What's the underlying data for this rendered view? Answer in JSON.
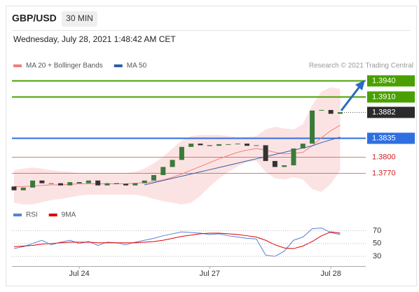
{
  "header": {
    "symbol": "GBP/USD",
    "interval": "30 MIN",
    "timestamp": "Wednesday, July 28, 2021 1:48:42 AM CET"
  },
  "chart_data": [
    {
      "type": "candlestick",
      "legend": [
        {
          "name": "MA 20 + Bollinger Bands",
          "color": "#f08080"
        },
        {
          "name": "MA 50",
          "color": "#2f5fa8"
        }
      ],
      "credit": "Research © 2021 Trading Central",
      "categories": [
        null,
        null,
        null,
        null,
        null,
        null,
        null,
        "Jul 24",
        null,
        null,
        null,
        null,
        null,
        null,
        null,
        null,
        null,
        null,
        null,
        null,
        null,
        "Jul 27",
        null,
        null,
        null,
        null,
        null,
        null,
        null,
        null,
        null,
        null,
        null,
        null,
        "Jul 28",
        null
      ],
      "open": [
        1.3745,
        1.3738,
        1.3743,
        1.3756,
        1.3751,
        1.3751,
        1.3747,
        1.3753,
        1.3751,
        1.3756,
        1.3747,
        1.3751,
        1.375,
        1.3747,
        1.3751,
        1.3756,
        1.3766,
        1.3781,
        1.3794,
        1.3818,
        1.3824,
        1.3821,
        1.382,
        1.3823,
        1.3823,
        1.3824,
        1.382,
        1.3821,
        1.3792,
        1.3781,
        1.3784,
        1.3815,
        1.3824,
        1.3885,
        1.3886,
        1.3879
      ],
      "close": [
        1.3738,
        1.3743,
        1.3756,
        1.3751,
        1.3751,
        1.3747,
        1.3753,
        1.3751,
        1.3756,
        1.3747,
        1.3751,
        1.375,
        1.3747,
        1.3751,
        1.3756,
        1.3766,
        1.3781,
        1.3794,
        1.3818,
        1.3824,
        1.3821,
        1.382,
        1.3823,
        1.3823,
        1.3824,
        1.382,
        1.3821,
        1.3792,
        1.3781,
        1.3784,
        1.3815,
        1.3824,
        1.3885,
        1.3886,
        1.3879,
        1.3882
      ],
      "up_color": "#3a7a3a",
      "down_color": "#333333",
      "ma20": [
        1.3745,
        1.3745,
        1.3746,
        1.3747,
        1.3748,
        1.3748,
        1.3749,
        1.375,
        1.375,
        1.375,
        1.375,
        1.375,
        1.375,
        1.3751,
        1.3752,
        1.3754,
        1.3757,
        1.3762,
        1.3768,
        1.3775,
        1.3782,
        1.3789,
        1.3796,
        1.3802,
        1.3808,
        1.3812,
        1.3815,
        1.3812,
        1.3808,
        1.3805,
        1.3806,
        1.3808,
        1.382,
        1.3835,
        1.3848,
        1.3858
      ],
      "ma50": [
        null,
        null,
        null,
        null,
        null,
        null,
        null,
        null,
        null,
        null,
        null,
        null,
        null,
        null,
        1.3748,
        1.3752,
        1.3756,
        1.376,
        1.3764,
        1.3768,
        1.3772,
        1.3776,
        1.378,
        1.3784,
        1.3788,
        1.3792,
        1.3796,
        1.38,
        1.3804,
        1.3808,
        1.3812,
        1.3816,
        1.382,
        1.3826,
        1.3831,
        1.3836
      ],
      "bollinger_upper": [
        1.3775,
        1.3778,
        1.378,
        1.3778,
        1.3775,
        1.3773,
        1.3772,
        1.377,
        1.377,
        1.377,
        1.377,
        1.377,
        1.377,
        1.3772,
        1.3778,
        1.3788,
        1.38,
        1.3815,
        1.383,
        1.3838,
        1.384,
        1.384,
        1.384,
        1.3838,
        1.3836,
        1.3836,
        1.3838,
        1.385,
        1.3855,
        1.3852,
        1.385,
        1.386,
        1.3895,
        1.392,
        1.3928,
        1.3925
      ],
      "bollinger_lower": [
        1.3715,
        1.3712,
        1.3712,
        1.3716,
        1.372,
        1.3722,
        1.3725,
        1.3728,
        1.373,
        1.373,
        1.373,
        1.373,
        1.373,
        1.373,
        1.3727,
        1.3722,
        1.3718,
        1.3715,
        1.3712,
        1.3715,
        1.3728,
        1.3745,
        1.376,
        1.3772,
        1.3782,
        1.379,
        1.3792,
        1.3772,
        1.376,
        1.3758,
        1.3762,
        1.3758,
        1.374,
        1.3735,
        1.375,
        1.3775
      ],
      "ylim": [
        1.3708,
        1.3979
      ],
      "levels": [
        {
          "value": 1.394,
          "label": "1.3940",
          "color": "#4aa000",
          "style": "box",
          "line": "solid"
        },
        {
          "value": 1.391,
          "label": "1.3910",
          "color": "#4aa000",
          "style": "box",
          "line": "solid"
        },
        {
          "value": 1.3882,
          "label": "1.3882",
          "color": "#2b2b2b",
          "style": "box",
          "line": "dotted"
        },
        {
          "value": 1.3835,
          "label": "1.3835",
          "color": "#2f6fe0",
          "style": "box",
          "line": "solid"
        },
        {
          "value": 1.38,
          "label": "1.3800",
          "color": "#d02020",
          "style": "text",
          "line": "solid"
        },
        {
          "value": 1.377,
          "label": "1.3770",
          "color": "#d02020",
          "style": "text",
          "line": "solid"
        }
      ]
    },
    {
      "type": "line",
      "series": [
        {
          "name": "RSI",
          "color": "#5b7fd6",
          "values": [
            42,
            45,
            50,
            55,
            48,
            52,
            55,
            50,
            53,
            47,
            52,
            51,
            48,
            52,
            55,
            58,
            62,
            65,
            68,
            67,
            66,
            64,
            65,
            62,
            60,
            58,
            57,
            32,
            30,
            38,
            55,
            60,
            73,
            74,
            67,
            64
          ]
        },
        {
          "name": "9MA",
          "color": "#e00000",
          "values": [
            45,
            46,
            47,
            49,
            50,
            51,
            52,
            52,
            52,
            51,
            51,
            51,
            51,
            51,
            52,
            53,
            55,
            58,
            61,
            63,
            65,
            66,
            66,
            65,
            64,
            62,
            60,
            55,
            48,
            43,
            42,
            46,
            53,
            62,
            68,
            66
          ]
        }
      ],
      "ylim": [
        17,
        78
      ],
      "yticks": [
        30,
        50,
        70
      ],
      "grid": true
    }
  ]
}
